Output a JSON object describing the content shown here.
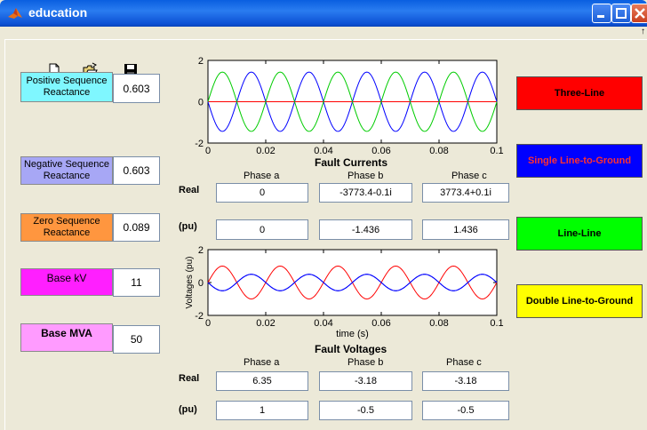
{
  "window": {
    "title": "education",
    "menu_edge": "↑"
  },
  "colors": {
    "positive": "#7ff7ff",
    "negative": "#a7a7f5",
    "zero": "#ff963f",
    "basekv": "#ff1fff",
    "basemva": "#ff9bff",
    "three_line": "#ff0000",
    "single": "#0000ff",
    "line_line": "#00ff00",
    "double": "#ffff00",
    "phase_a": "#ff0000",
    "phase_b": "#0000ff",
    "phase_c": "#00cc00"
  },
  "toolbar": [
    {
      "icon": "new-file-icon"
    },
    {
      "icon": "open-folder-icon"
    },
    {
      "icon": "save-icon"
    }
  ],
  "params": {
    "positive": {
      "label": "Positive Sequence Reactance",
      "value": "0.603"
    },
    "negative": {
      "label": "Negative Sequence Reactance",
      "value": "0.603"
    },
    "zero": {
      "label": "Zero Sequence Reactance",
      "value": "0.089"
    },
    "basekv": {
      "label": "Base kV",
      "value": "11"
    },
    "basemva": {
      "label": "Base MVA",
      "value": "50"
    }
  },
  "buttons": {
    "three_line": "Three-Line",
    "single": "Single Line-to-Ground",
    "line_line": "Line-Line",
    "double": "Double Line-to-Ground"
  },
  "currents": {
    "title": "Fault Currents",
    "headers": [
      "Phase a",
      "Phase b",
      "Phase c"
    ],
    "real_label": "Real",
    "pu_label": "(pu)",
    "real": [
      "0",
      "-3773.4-0.1i",
      "3773.4+0.1i"
    ],
    "pu": [
      "0",
      "-1.436",
      "1.436"
    ]
  },
  "voltages": {
    "title": "Fault Voltages",
    "headers": [
      "Phase a",
      "Phase b",
      "Phase c"
    ],
    "real_label": "Real",
    "pu_label": "(pu)",
    "real": [
      "6.35",
      "-3.18",
      "-3.18"
    ],
    "pu": [
      "1",
      "-0.5",
      "-0.5"
    ]
  },
  "chart_data": [
    {
      "type": "line",
      "title": "Fault Currents",
      "xlabel": "",
      "ylabel": "",
      "xlim": [
        0,
        0.1
      ],
      "ylim": [
        -2,
        2
      ],
      "xticks": [
        "0",
        "0.02",
        "0.04",
        "0.06",
        "0.08",
        "0.1"
      ],
      "yticks": [
        "-2",
        "0",
        "2"
      ],
      "frequency_hz": 50,
      "series": [
        {
          "phase": "a",
          "color": "#ff0000",
          "amplitude": 0,
          "phase_deg": 0
        },
        {
          "phase": "b",
          "color": "#0000ff",
          "amplitude": 1.436,
          "phase_deg": 180
        },
        {
          "phase": "c",
          "color": "#00cc00",
          "amplitude": 1.436,
          "phase_deg": 0
        }
      ]
    },
    {
      "type": "line",
      "title": "Fault Voltages",
      "xlabel": "time (s)",
      "ylabel": "Voltages (pu)",
      "xlim": [
        0,
        0.1
      ],
      "ylim": [
        -2,
        2
      ],
      "xticks": [
        "0",
        "0.02",
        "0.04",
        "0.06",
        "0.08",
        "0.1"
      ],
      "yticks": [
        "-2",
        "0",
        "2"
      ],
      "frequency_hz": 50,
      "series": [
        {
          "phase": "a",
          "color": "#ff0000",
          "amplitude": 1.0,
          "phase_deg": 0
        },
        {
          "phase": "b",
          "color": "#0000ff",
          "amplitude": 0.5,
          "phase_deg": 180
        },
        {
          "phase": "c",
          "color": "#0000ff",
          "amplitude": 0.5,
          "phase_deg": 180
        }
      ]
    }
  ]
}
